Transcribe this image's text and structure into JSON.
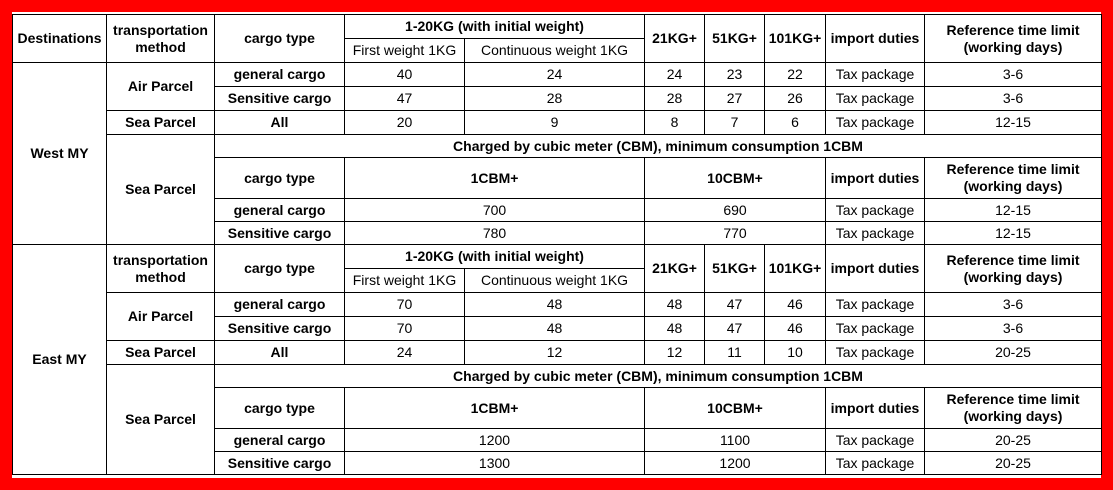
{
  "table": {
    "rows": [
      [
        "Destinations",
        "transportation method",
        "cargo type",
        "1-20KG (with initial weight)",
        "21KG+",
        "51KG+",
        "101KG+",
        "import duties",
        "Reference time limit (working days)"
      ],
      [
        "First weight 1KG",
        "Continuous weight 1KG"
      ],
      [
        "West MY",
        "Air Parcel",
        "general cargo",
        40,
        24,
        24,
        23,
        22,
        "Tax package",
        "3-6"
      ],
      [
        "Sensitive cargo",
        47,
        28,
        28,
        27,
        26,
        "Tax package",
        "3-6"
      ],
      [
        "Sea Parcel",
        "All",
        20,
        9,
        8,
        7,
        6,
        "Tax package",
        "12-15"
      ],
      [
        "Sea Parcel",
        "Charged by cubic meter (CBM), minimum consumption 1CBM"
      ],
      [
        "cargo type",
        "1CBM+",
        "10CBM+",
        "import duties",
        "Reference time limit (working days)"
      ],
      [
        "general cargo",
        700,
        690,
        "Tax package",
        "12-15"
      ],
      [
        "Sensitive cargo",
        780,
        770,
        "Tax package",
        "12-15"
      ],
      [
        "East MY",
        "transportation method",
        "cargo type",
        "1-20KG (with initial weight)",
        "21KG+",
        "51KG+",
        "101KG+",
        "import duties",
        "Reference time limit (working days)"
      ],
      [
        "First weight 1KG",
        "Continuous weight 1KG"
      ],
      [
        "Air Parcel",
        "general cargo",
        70,
        48,
        48,
        47,
        46,
        "Tax package",
        "3-6"
      ],
      [
        "Sensitive cargo",
        70,
        48,
        48,
        47,
        46,
        "Tax package",
        "3-6"
      ],
      [
        "Sea Parcel",
        "All",
        24,
        12,
        12,
        11,
        10,
        "Tax package",
        "20-25"
      ],
      [
        "Sea Parcel",
        "Charged by cubic meter (CBM), minimum consumption 1CBM"
      ],
      [
        "cargo type",
        "1CBM+",
        "10CBM+",
        "import duties",
        "Reference time limit (working days)"
      ],
      [
        "general cargo",
        1200,
        1100,
        "Tax package",
        "20-25"
      ],
      [
        "Sensitive cargo",
        1300,
        1200,
        "Tax package",
        "20-25"
      ]
    ]
  }
}
